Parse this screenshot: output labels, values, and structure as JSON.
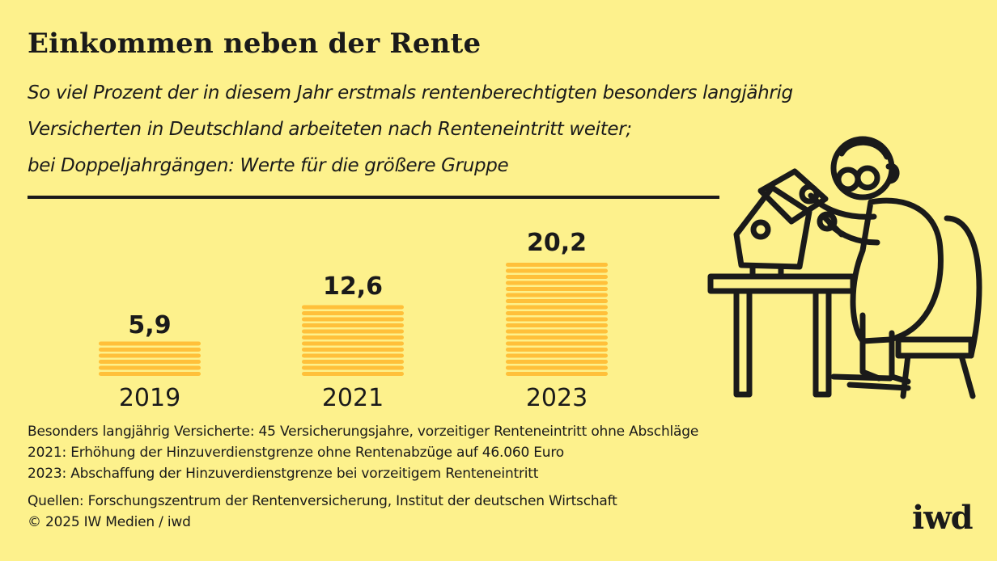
{
  "header": {
    "title": "Einkommen neben der Rente",
    "subtitle_lines": [
      "So viel Prozent der in diesem Jahr erstmals rentenberechtigten besonders langjährig",
      "Versicherten in Deutschland arbeiteten nach Renteneintritt weiter;",
      "bei Doppeljahrgängen: Werte für die größere Gruppe"
    ]
  },
  "chart_data": {
    "type": "bar",
    "categories": [
      "2019",
      "2021",
      "2023"
    ],
    "values": [
      5.9,
      12.6,
      20.2
    ],
    "value_labels": [
      "5,9",
      "12,6",
      "20,2"
    ],
    "bar_color": "#ffc03a",
    "grid": false
  },
  "footnotes": [
    "Besonders langjährig Versicherte: 45 Versicherungsjahre, vorzeitiger Renteneintritt ohne Abschläge",
    "2021: Erhöhung der Hinzuverdienstgrenze ohne Rentenabzüge auf 46.060 Euro",
    "2023: Abschaffung der Hinzuverdienstgrenze bei vorzeitigem Renteneintritt"
  ],
  "sources": [
    "Quellen: Forschungszentrum der Rentenversicherung, Institut der deutschen Wirtschaft",
    "© 2025 IW Medien / iwd"
  ],
  "logo": "iwd",
  "colors": {
    "background": "#fdf18c",
    "accent": "#ffc03a",
    "ink": "#1a1a1a"
  },
  "illustration": "elderly man with glasses building a birdhouse at a table"
}
